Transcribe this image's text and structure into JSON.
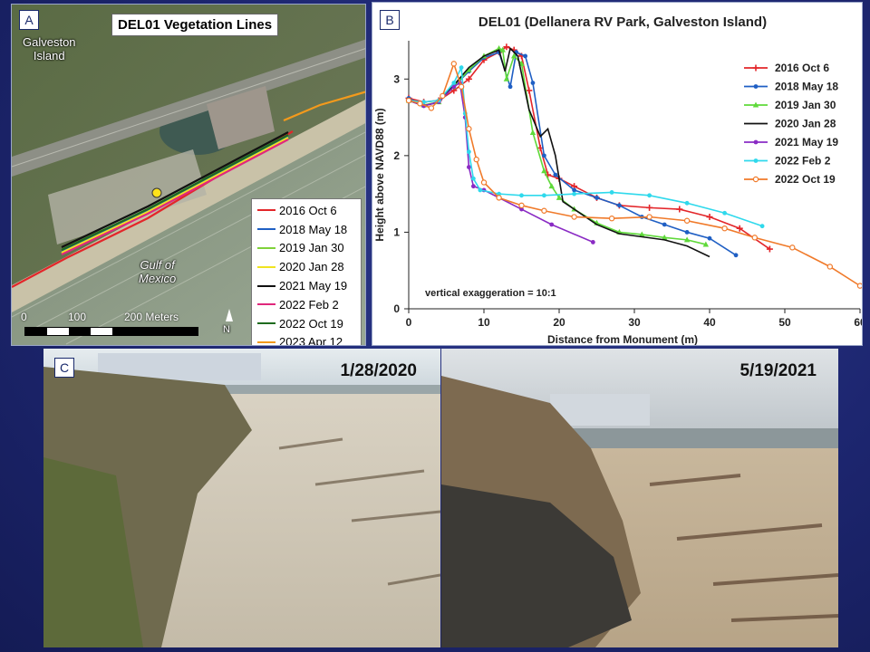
{
  "panel_a": {
    "tag": "A",
    "title": "DEL01 Vegetation Lines",
    "labels": {
      "island": "Galveston\nIsland",
      "gulf": "Gulf of\nMexico"
    },
    "legend": [
      {
        "label": "2016 Oct 6",
        "color": "#e3262a"
      },
      {
        "label": "2018 May 18",
        "color": "#1f5fc4"
      },
      {
        "label": "2019 Jan 30",
        "color": "#7fd23a"
      },
      {
        "label": "2020 Jan 28",
        "color": "#f0e420"
      },
      {
        "label": "2021 May 19",
        "color": "#111111"
      },
      {
        "label": "2022 Feb 2",
        "color": "#e0287c"
      },
      {
        "label": "2022 Oct 19",
        "color": "#1e6b1e"
      },
      {
        "label": "2023 Apr 12",
        "color": "#f39a1c"
      }
    ],
    "scale": {
      "labels": [
        "0",
        "100",
        "200 Meters"
      ]
    },
    "north": "N"
  },
  "panel_b": {
    "tag": "B"
  },
  "chart_data": {
    "type": "line",
    "title": "DEL01 (Dellanera RV Park, Galveston Island)",
    "xlabel": "Distance from Monument (m)",
    "ylabel": "Height above NAVD88 (m)",
    "xlim": [
      0,
      60
    ],
    "ylim": [
      0,
      3.5
    ],
    "xticks": [
      0,
      10,
      20,
      30,
      40,
      50,
      60
    ],
    "yticks": [
      0,
      1,
      2,
      3
    ],
    "legend_position": "top-right",
    "annotation": "vertical exaggeration = 10:1",
    "series": [
      {
        "name": "2016 Oct 6",
        "color": "#e3262a",
        "marker": "plus",
        "x": [
          0,
          2,
          4,
          6,
          8,
          10,
          12,
          13,
          14,
          15,
          16,
          17.5,
          18.5,
          20,
          22,
          25,
          28,
          32,
          36,
          40,
          44,
          48
        ],
        "y": [
          2.75,
          2.7,
          2.72,
          2.85,
          3.0,
          3.25,
          3.35,
          3.42,
          3.38,
          3.3,
          2.85,
          2.1,
          1.75,
          1.7,
          1.6,
          1.45,
          1.35,
          1.32,
          1.3,
          1.2,
          1.05,
          0.78
        ]
      },
      {
        "name": "2018 May 18",
        "color": "#1f5fc4",
        "marker": "dot",
        "x": [
          0,
          2,
          4,
          6,
          8,
          10,
          12,
          13.5,
          14.3,
          15.5,
          16.5,
          18,
          19.5,
          22,
          25,
          28,
          31,
          34,
          37,
          40,
          43.5
        ],
        "y": [
          2.75,
          2.65,
          2.7,
          2.9,
          3.1,
          3.28,
          3.35,
          2.9,
          3.35,
          3.3,
          2.95,
          2.0,
          1.75,
          1.55,
          1.45,
          1.35,
          1.2,
          1.1,
          1.0,
          0.92,
          0.7
        ]
      },
      {
        "name": "2019 Jan 30",
        "color": "#5fd93a",
        "marker": "triangle",
        "x": [
          0,
          2,
          4,
          6,
          8,
          10,
          12,
          12.5,
          13,
          14,
          15,
          16.5,
          18,
          19,
          20,
          22,
          25,
          28,
          31,
          34,
          37,
          39.5
        ],
        "y": [
          2.72,
          2.66,
          2.7,
          2.9,
          3.12,
          3.3,
          3.4,
          3.38,
          3.0,
          3.3,
          3.2,
          2.3,
          1.8,
          1.6,
          1.45,
          1.3,
          1.12,
          1.0,
          0.97,
          0.93,
          0.9,
          0.84
        ]
      },
      {
        "name": "2020 Jan 28",
        "color": "#111111",
        "marker": "none",
        "x": [
          0,
          2,
          4,
          6,
          8,
          10,
          12,
          12.8,
          13.5,
          14.5,
          16,
          17.5,
          18.5,
          19.5,
          20.5,
          22,
          25,
          28,
          31,
          34,
          37,
          40
        ],
        "y": [
          2.72,
          2.65,
          2.7,
          2.92,
          3.15,
          3.3,
          3.38,
          3.1,
          3.4,
          3.3,
          2.6,
          2.25,
          2.35,
          2.0,
          1.4,
          1.3,
          1.1,
          0.98,
          0.94,
          0.9,
          0.82,
          0.68
        ]
      },
      {
        "name": "2021 May 19",
        "color": "#8a2bc4",
        "marker": "dot",
        "x": [
          0,
          2,
          4,
          6,
          6.8,
          7.5,
          8,
          8.6,
          10,
          12,
          15,
          19,
          24.5
        ],
        "y": [
          2.72,
          2.65,
          2.7,
          2.9,
          2.95,
          2.5,
          1.85,
          1.6,
          1.55,
          1.45,
          1.3,
          1.1,
          0.87
        ]
      },
      {
        "name": "2022 Feb 2",
        "color": "#2fd9ec",
        "marker": "dot",
        "x": [
          0,
          2,
          4,
          6,
          7,
          7.5,
          8,
          8.6,
          9.5,
          12,
          15,
          18,
          22,
          27,
          32,
          37,
          42,
          47
        ],
        "y": [
          2.72,
          2.7,
          2.72,
          2.95,
          3.15,
          2.55,
          2.05,
          1.7,
          1.55,
          1.5,
          1.48,
          1.48,
          1.5,
          1.52,
          1.48,
          1.38,
          1.25,
          1.08
        ]
      },
      {
        "name": "2022 Oct 19",
        "color": "#f07a2a",
        "marker": "circle",
        "x": [
          0,
          1.5,
          3,
          4.5,
          6,
          7,
          8,
          9,
          10,
          12,
          15,
          18,
          22,
          27,
          32,
          37,
          42,
          46,
          51,
          56,
          60
        ],
        "y": [
          2.72,
          2.68,
          2.62,
          2.78,
          3.2,
          2.9,
          2.35,
          1.95,
          1.65,
          1.45,
          1.35,
          1.28,
          1.2,
          1.18,
          1.2,
          1.15,
          1.05,
          0.93,
          0.8,
          0.55,
          0.3
        ]
      }
    ]
  },
  "panel_c": {
    "tag": "C",
    "photos": [
      {
        "date": "1/28/2020"
      },
      {
        "date": "5/19/2021"
      }
    ]
  }
}
